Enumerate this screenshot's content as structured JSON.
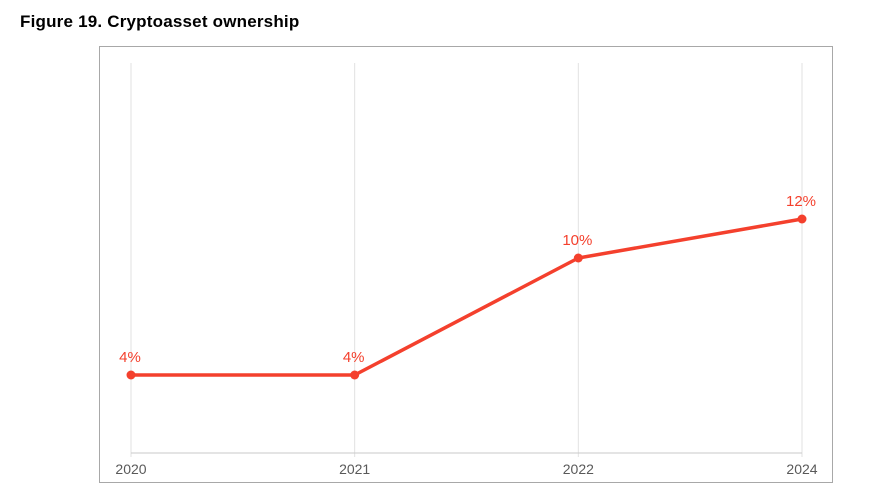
{
  "title": "Figure 19. Cryptoasset ownership",
  "chart_data": {
    "type": "line",
    "title": "Figure 19. Cryptoasset ownership",
    "categories": [
      "2020",
      "2021",
      "2022",
      "2024"
    ],
    "series": [
      {
        "name": "Cryptoasset ownership",
        "values": [
          4,
          4,
          10,
          12
        ],
        "point_labels": [
          "4%",
          "4%",
          "10%",
          "12%"
        ]
      }
    ],
    "xlabel": "",
    "ylabel": "",
    "ylim": [
      0,
      20
    ],
    "grid": "vertical-only",
    "legend": "none",
    "colors": {
      "line": "#f4402d",
      "point": "#f4402d",
      "data_label": "#f4402d",
      "gridline": "#e2e2e2",
      "axis_line": "#c9c9c9",
      "tick_label": "#595959",
      "chart_border": "#a8a8a8",
      "background": "#ffffff"
    }
  }
}
